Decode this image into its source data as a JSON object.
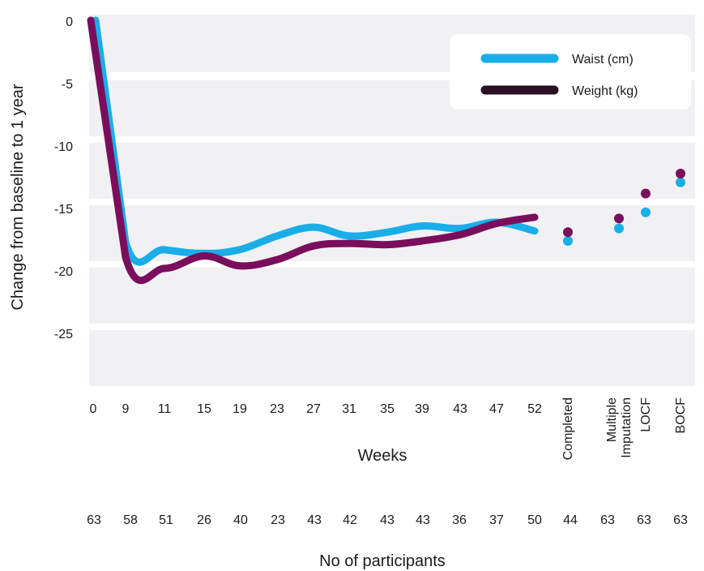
{
  "chart_data": {
    "type": "line",
    "title": "",
    "xlabel": "Weeks",
    "ylabel": "Change from baseline to 1 year",
    "ylim": [
      -30,
      0
    ],
    "yticks": [
      "0",
      "-5",
      "-10",
      "-15",
      "-20",
      "-25"
    ],
    "grid": "horizontal bands",
    "legend_position": "top-right",
    "x_week_labels": [
      "0",
      "9",
      "11",
      "15",
      "19",
      "23",
      "27",
      "31",
      "35",
      "39",
      "43",
      "47",
      "52"
    ],
    "x_method_labels": [
      "Completed",
      "Multiple\nImputation",
      "LOCF",
      "BOCF"
    ],
    "participants_label": "No of participants",
    "participants": [
      "63",
      "58",
      "51",
      "26",
      "40",
      "23",
      "43",
      "42",
      "43",
      "43",
      "36",
      "37",
      "50",
      "44",
      "63",
      "63",
      "63"
    ],
    "series": [
      {
        "name": "Waist (cm)",
        "color": "#1aaee8",
        "values": [
          0,
          -17.8,
          -18.4,
          -18.7,
          -18.4,
          -17.3,
          -16.6,
          -17.3,
          -17.0,
          -16.5,
          -16.7,
          -16.2,
          -16.9
        ],
        "method_values": [
          -17.7,
          -16.7,
          -15.4,
          -13.0
        ]
      },
      {
        "name": "Weight (kg)",
        "color": "#7a0e5c",
        "values": [
          0,
          -19.0,
          -19.9,
          -18.9,
          -19.7,
          -19.2,
          -18.1,
          -17.9,
          -18.0,
          -17.7,
          -17.2,
          -16.3,
          -15.8
        ],
        "method_values": [
          -17.0,
          -15.9,
          -13.9,
          -12.3
        ]
      }
    ],
    "legend_line_colors": [
      "#1aaee8",
      "#2b0f24"
    ]
  }
}
